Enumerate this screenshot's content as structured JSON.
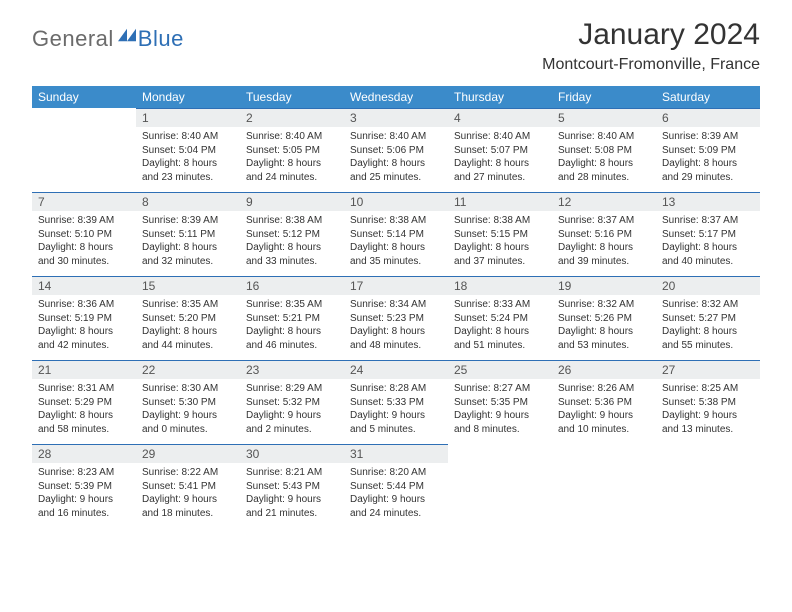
{
  "brand": {
    "word1": "General",
    "word2": "Blue"
  },
  "title": {
    "month": "January 2024",
    "location": "Montcourt-Fromonville, France"
  },
  "colors": {
    "header_bg": "#3b8bca",
    "accent": "#2e6fb5",
    "daynum_bg": "#eceeef"
  },
  "weekdays": [
    "Sunday",
    "Monday",
    "Tuesday",
    "Wednesday",
    "Thursday",
    "Friday",
    "Saturday"
  ],
  "days": [
    {
      "n": "",
      "sr": "",
      "ss": "",
      "dl": ""
    },
    {
      "n": "1",
      "sr": "8:40 AM",
      "ss": "5:04 PM",
      "dl": "8 hours and 23 minutes."
    },
    {
      "n": "2",
      "sr": "8:40 AM",
      "ss": "5:05 PM",
      "dl": "8 hours and 24 minutes."
    },
    {
      "n": "3",
      "sr": "8:40 AM",
      "ss": "5:06 PM",
      "dl": "8 hours and 25 minutes."
    },
    {
      "n": "4",
      "sr": "8:40 AM",
      "ss": "5:07 PM",
      "dl": "8 hours and 27 minutes."
    },
    {
      "n": "5",
      "sr": "8:40 AM",
      "ss": "5:08 PM",
      "dl": "8 hours and 28 minutes."
    },
    {
      "n": "6",
      "sr": "8:39 AM",
      "ss": "5:09 PM",
      "dl": "8 hours and 29 minutes."
    },
    {
      "n": "7",
      "sr": "8:39 AM",
      "ss": "5:10 PM",
      "dl": "8 hours and 30 minutes."
    },
    {
      "n": "8",
      "sr": "8:39 AM",
      "ss": "5:11 PM",
      "dl": "8 hours and 32 minutes."
    },
    {
      "n": "9",
      "sr": "8:38 AM",
      "ss": "5:12 PM",
      "dl": "8 hours and 33 minutes."
    },
    {
      "n": "10",
      "sr": "8:38 AM",
      "ss": "5:14 PM",
      "dl": "8 hours and 35 minutes."
    },
    {
      "n": "11",
      "sr": "8:38 AM",
      "ss": "5:15 PM",
      "dl": "8 hours and 37 minutes."
    },
    {
      "n": "12",
      "sr": "8:37 AM",
      "ss": "5:16 PM",
      "dl": "8 hours and 39 minutes."
    },
    {
      "n": "13",
      "sr": "8:37 AM",
      "ss": "5:17 PM",
      "dl": "8 hours and 40 minutes."
    },
    {
      "n": "14",
      "sr": "8:36 AM",
      "ss": "5:19 PM",
      "dl": "8 hours and 42 minutes."
    },
    {
      "n": "15",
      "sr": "8:35 AM",
      "ss": "5:20 PM",
      "dl": "8 hours and 44 minutes."
    },
    {
      "n": "16",
      "sr": "8:35 AM",
      "ss": "5:21 PM",
      "dl": "8 hours and 46 minutes."
    },
    {
      "n": "17",
      "sr": "8:34 AM",
      "ss": "5:23 PM",
      "dl": "8 hours and 48 minutes."
    },
    {
      "n": "18",
      "sr": "8:33 AM",
      "ss": "5:24 PM",
      "dl": "8 hours and 51 minutes."
    },
    {
      "n": "19",
      "sr": "8:32 AM",
      "ss": "5:26 PM",
      "dl": "8 hours and 53 minutes."
    },
    {
      "n": "20",
      "sr": "8:32 AM",
      "ss": "5:27 PM",
      "dl": "8 hours and 55 minutes."
    },
    {
      "n": "21",
      "sr": "8:31 AM",
      "ss": "5:29 PM",
      "dl": "8 hours and 58 minutes."
    },
    {
      "n": "22",
      "sr": "8:30 AM",
      "ss": "5:30 PM",
      "dl": "9 hours and 0 minutes."
    },
    {
      "n": "23",
      "sr": "8:29 AM",
      "ss": "5:32 PM",
      "dl": "9 hours and 2 minutes."
    },
    {
      "n": "24",
      "sr": "8:28 AM",
      "ss": "5:33 PM",
      "dl": "9 hours and 5 minutes."
    },
    {
      "n": "25",
      "sr": "8:27 AM",
      "ss": "5:35 PM",
      "dl": "9 hours and 8 minutes."
    },
    {
      "n": "26",
      "sr": "8:26 AM",
      "ss": "5:36 PM",
      "dl": "9 hours and 10 minutes."
    },
    {
      "n": "27",
      "sr": "8:25 AM",
      "ss": "5:38 PM",
      "dl": "9 hours and 13 minutes."
    },
    {
      "n": "28",
      "sr": "8:23 AM",
      "ss": "5:39 PM",
      "dl": "9 hours and 16 minutes."
    },
    {
      "n": "29",
      "sr": "8:22 AM",
      "ss": "5:41 PM",
      "dl": "9 hours and 18 minutes."
    },
    {
      "n": "30",
      "sr": "8:21 AM",
      "ss": "5:43 PM",
      "dl": "9 hours and 21 minutes."
    },
    {
      "n": "31",
      "sr": "8:20 AM",
      "ss": "5:44 PM",
      "dl": "9 hours and 24 minutes."
    },
    {
      "n": "",
      "sr": "",
      "ss": "",
      "dl": ""
    },
    {
      "n": "",
      "sr": "",
      "ss": "",
      "dl": ""
    },
    {
      "n": "",
      "sr": "",
      "ss": "",
      "dl": ""
    }
  ],
  "labels": {
    "sunrise": "Sunrise:",
    "sunset": "Sunset:",
    "daylight": "Daylight:"
  }
}
